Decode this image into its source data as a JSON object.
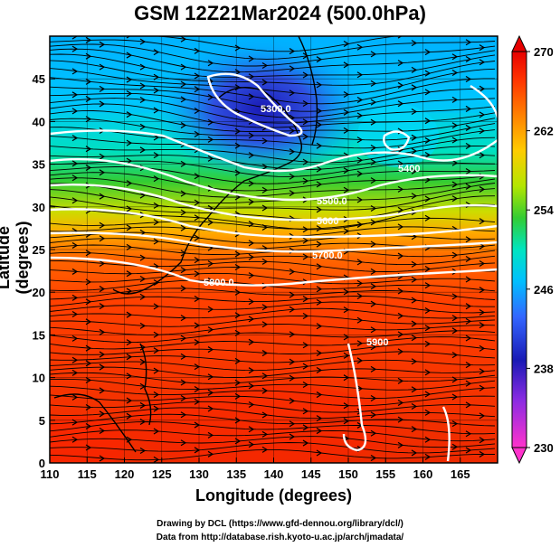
{
  "title": "GSM 12Z21Mar2024 (500.0hPa)",
  "xlabel": "Longitude (degrees)",
  "ylabel": "Latitude  (degrees)",
  "credits": [
    "Drawing by DCL (https://www.gfd-dennou.org/library/dcl/)",
    "Data from http://database.rish.kyoto-u.ac.jp/arch/jmadata/"
  ],
  "map": {
    "lon_range": [
      110,
      170
    ],
    "lat_range": [
      0,
      50
    ],
    "lon_ticks": [
      "110",
      "115",
      "120",
      "125",
      "130",
      "135",
      "140",
      "145",
      "150",
      "155",
      "160",
      "165"
    ],
    "lat_ticks": [
      "0",
      "5",
      "10",
      "15",
      "20",
      "25",
      "30",
      "35",
      "40",
      "45"
    ],
    "field": "temperature",
    "colorbar": {
      "min": 230,
      "max": 270,
      "ticks": [
        "230",
        "238",
        "246",
        "254",
        "262",
        "270"
      ],
      "colors": [
        "#ff33cc",
        "#8a2be2",
        "#1a1ab5",
        "#3366ff",
        "#00bfff",
        "#00e5c0",
        "#33cc33",
        "#b3e600",
        "#ffcc00",
        "#ff8000",
        "#ff3300",
        "#e60000"
      ]
    },
    "contours": [
      {
        "label": "5300.0"
      },
      {
        "label": "5400"
      },
      {
        "label": "5500.0"
      },
      {
        "label": "5600"
      },
      {
        "label": "5700.0"
      },
      {
        "label": "5800.0"
      },
      {
        "label": "5900"
      }
    ]
  }
}
